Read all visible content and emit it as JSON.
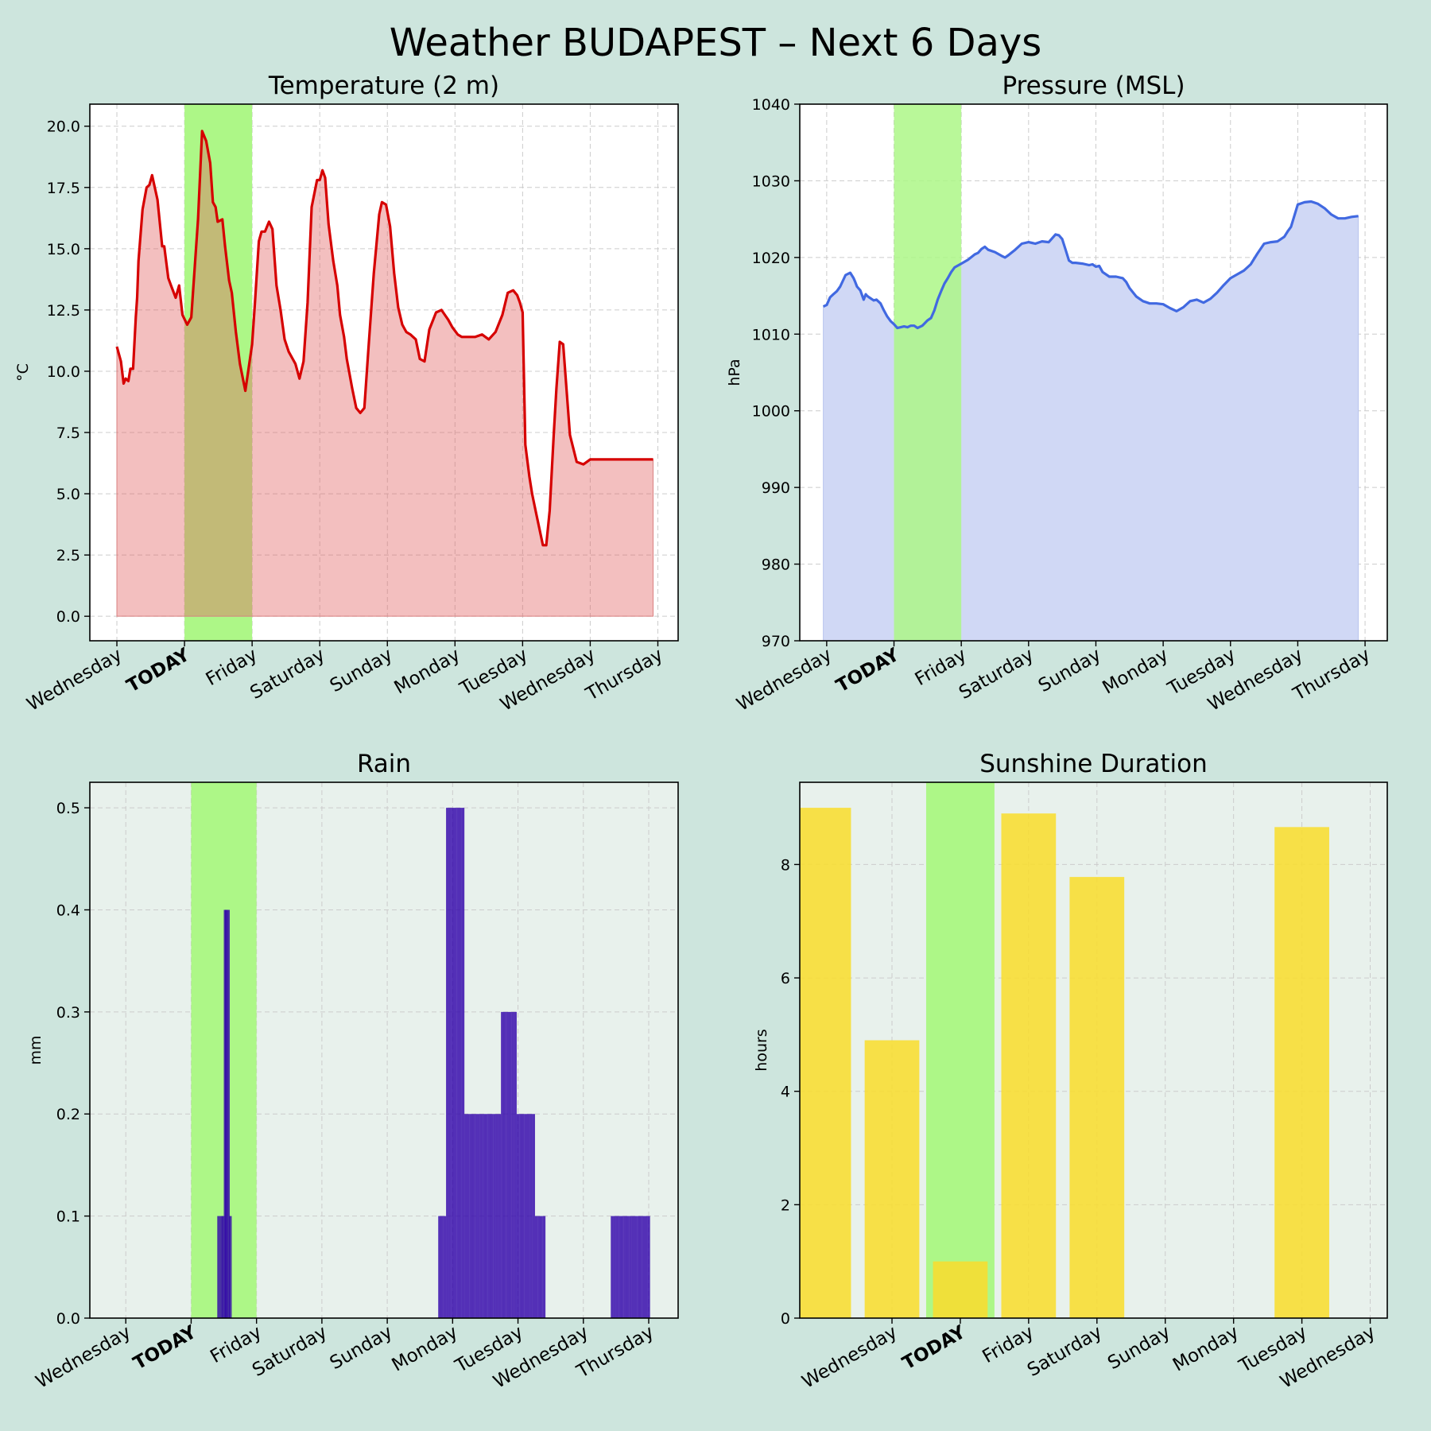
{
  "title": "Weather BUDAPEST – Next 6 Days",
  "colors": {
    "figure_bg": "#cde5dd",
    "today_band": "#adf787",
    "today_label": "#4fc01c",
    "temperature_line": "#d60000",
    "temperature_fill": "#f2bdbd",
    "pressure_line": "#4169e1",
    "pressure_fill": "#d0d8f5",
    "rain_bar": "#2e00aa",
    "sunshine_bar": "#f8dd30",
    "lower_axes_bg": "#e8f1ec"
  },
  "chart_data": [
    {
      "type": "area",
      "title": "Temperature (2 m)",
      "ylabel": "°C",
      "ylim": [
        -1,
        20.9
      ],
      "xlim": [
        -0.4,
        8.3
      ],
      "yticks": [
        "0.0",
        "2.5",
        "5.0",
        "7.5",
        "10.0",
        "12.5",
        "15.0",
        "17.5",
        "20.0"
      ],
      "xtick_labels": [
        "Wednesday",
        "TODAY",
        "Friday",
        "Saturday",
        "Sunday",
        "Monday",
        "Tuesday",
        "Wednesday",
        "Thursday"
      ],
      "today_index": 1,
      "today_band": [
        1,
        2
      ],
      "grid": true,
      "series": [
        {
          "name": "Temperature",
          "x": [
            0,
            0.06,
            0.1,
            0.13,
            0.17,
            0.2,
            0.24,
            0.28,
            0.3,
            0.32,
            0.38,
            0.44,
            0.48,
            0.52,
            0.6,
            0.67,
            0.7,
            0.76,
            0.8,
            0.87,
            0.92,
            0.97,
            1.04,
            1.1,
            1.16,
            1.2,
            1.26,
            1.32,
            1.38,
            1.42,
            1.46,
            1.49,
            1.56,
            1.6,
            1.66,
            1.7,
            1.76,
            1.82,
            1.9,
            2.0,
            2.04,
            2.1,
            2.14,
            2.19,
            2.25,
            2.3,
            2.36,
            2.42,
            2.48,
            2.54,
            2.6,
            2.64,
            2.7,
            2.76,
            2.82,
            2.88,
            2.96,
            3.0,
            3.04,
            3.08,
            3.13,
            3.2,
            3.26,
            3.3,
            3.36,
            3.4,
            3.44,
            3.48,
            3.54,
            3.6,
            3.66,
            3.72,
            3.8,
            3.88,
            3.92,
            3.98,
            4.04,
            4.1,
            4.16,
            4.22,
            4.28,
            4.34,
            4.42,
            4.48,
            4.55,
            4.62,
            4.72,
            4.8,
            4.85,
            4.9,
            4.96,
            5.04,
            5.1,
            5.16,
            5.22,
            5.3,
            5.4,
            5.5,
            5.6,
            5.7,
            5.78,
            5.86,
            5.92,
            5.96,
            6.0,
            6.04,
            6.1,
            6.14,
            6.2,
            6.3,
            6.35,
            6.4,
            6.46,
            6.5,
            6.55,
            6.6,
            6.7,
            6.8,
            6.9,
            7.0,
            7.1,
            7.2,
            7.26,
            7.3,
            7.36,
            7.4,
            7.45,
            7.5,
            7.55,
            7.62,
            7.7,
            7.75,
            7.82,
            7.86,
            7.9,
            7.93
          ],
          "values": [
            11.0,
            10.4,
            9.5,
            9.7,
            9.6,
            10.1,
            10.1,
            12.2,
            13.0,
            14.5,
            16.6,
            17.5,
            17.6,
            18.0,
            17.0,
            15.1,
            15.1,
            13.8,
            13.5,
            13.0,
            13.5,
            12.3,
            11.9,
            12.2,
            14.6,
            16.2,
            19.8,
            19.4,
            18.5,
            16.9,
            16.7,
            16.1,
            16.2,
            15.1,
            13.7,
            13.2,
            11.6,
            10.3,
            9.2,
            11.1,
            12.7,
            15.3,
            15.7,
            15.7,
            16.1,
            15.8,
            13.5,
            12.5,
            11.3,
            10.8,
            10.5,
            10.3,
            9.7,
            10.4,
            12.8,
            16.7,
            17.8,
            17.8,
            18.2,
            17.9,
            16.0,
            14.5,
            13.5,
            12.3,
            11.4,
            10.5,
            9.9,
            9.3,
            8.5,
            8.3,
            8.5,
            10.9,
            14.0,
            16.4,
            16.9,
            16.8,
            15.9,
            14.0,
            12.6,
            11.9,
            11.6,
            11.5,
            11.3,
            10.5,
            10.4,
            11.7,
            12.4,
            12.5,
            12.3,
            12.1,
            11.8,
            11.5,
            11.4,
            11.4,
            11.4,
            11.4,
            11.5,
            11.3,
            11.6,
            12.3,
            13.2,
            13.3,
            13.1,
            12.8,
            12.4,
            7.0,
            5.7,
            5.0,
            4.2,
            2.9,
            2.9,
            4.3,
            7.4,
            9.3,
            11.2,
            11.1,
            7.4,
            6.3,
            6.2,
            6.4,
            6.4,
            6.4,
            6.4,
            6.4,
            6.4,
            6.4,
            6.4,
            6.4,
            6.4,
            6.4,
            6.4,
            6.4,
            6.4,
            6.4,
            6.4,
            6.4
          ]
        }
      ]
    },
    {
      "type": "area",
      "title": "Pressure (MSL)",
      "ylabel": "hPa",
      "ylim": [
        970,
        1040
      ],
      "xlim": [
        -0.4,
        8.33
      ],
      "yticks": [
        "970",
        "980",
        "990",
        "1000",
        "1010",
        "1020",
        "1030",
        "1040"
      ],
      "xtick_labels": [
        "Wednesday",
        "TODAY",
        "Friday",
        "Saturday",
        "Sunday",
        "Monday",
        "Tuesday",
        "Wednesday",
        "Thursday"
      ],
      "today_index": 1,
      "today_band": [
        1,
        2
      ],
      "grid": true,
      "series": [
        {
          "name": "Pressure",
          "x": [
            -0.05,
            0.0,
            0.05,
            0.1,
            0.15,
            0.2,
            0.28,
            0.35,
            0.4,
            0.42,
            0.45,
            0.5,
            0.55,
            0.58,
            0.6,
            0.63,
            0.7,
            0.74,
            0.8,
            0.85,
            0.9,
            0.95,
            1.0,
            1.05,
            1.1,
            1.15,
            1.2,
            1.25,
            1.3,
            1.35,
            1.42,
            1.5,
            1.55,
            1.6,
            1.65,
            1.7,
            1.75,
            1.8,
            1.85,
            1.9,
            2.0,
            2.1,
            2.2,
            2.25,
            2.3,
            2.35,
            2.4,
            2.5,
            2.6,
            2.65,
            2.7,
            2.8,
            2.9,
            3.0,
            3.05,
            3.1,
            3.2,
            3.3,
            3.35,
            3.4,
            3.45,
            3.5,
            3.55,
            3.6,
            3.65,
            3.7,
            3.8,
            3.9,
            3.95,
            4.0,
            4.05,
            4.1,
            4.2,
            4.3,
            4.4,
            4.45,
            4.5,
            4.6,
            4.7,
            4.8,
            4.9,
            5.0,
            5.1,
            5.2,
            5.3,
            5.4,
            5.5,
            5.6,
            5.7,
            5.8,
            5.9,
            6.0,
            6.1,
            6.2,
            6.3,
            6.4,
            6.5,
            6.6,
            6.7,
            6.8,
            6.85,
            6.9,
            7.0,
            7.1,
            7.2,
            7.3,
            7.4,
            7.5,
            7.6,
            7.7,
            7.8,
            7.9
          ],
          "values": [
            1013.6,
            1013.8,
            1014.8,
            1015.2,
            1015.6,
            1016.2,
            1017.7,
            1018.0,
            1017.3,
            1016.9,
            1016.2,
            1015.7,
            1014.5,
            1015.2,
            1015.0,
            1014.8,
            1014.4,
            1014.5,
            1014.0,
            1013.1,
            1012.3,
            1011.7,
            1011.3,
            1010.8,
            1010.9,
            1011.0,
            1010.9,
            1011.1,
            1011.1,
            1010.8,
            1011.1,
            1011.8,
            1012.1,
            1013.1,
            1014.5,
            1015.6,
            1016.6,
            1017.3,
            1018.1,
            1018.7,
            1019.2,
            1019.7,
            1020.4,
            1020.6,
            1021.1,
            1021.4,
            1021.0,
            1020.7,
            1020.2,
            1020.0,
            1020.3,
            1021.0,
            1021.8,
            1022.0,
            1021.9,
            1021.8,
            1022.1,
            1022.0,
            1022.5,
            1023.0,
            1022.9,
            1022.4,
            1021.0,
            1019.6,
            1019.3,
            1019.3,
            1019.2,
            1019.0,
            1019.1,
            1018.8,
            1018.9,
            1018.1,
            1017.5,
            1017.5,
            1017.3,
            1016.8,
            1016.0,
            1014.9,
            1014.3,
            1014.0,
            1014.0,
            1013.9,
            1013.4,
            1013.0,
            1013.5,
            1014.3,
            1014.5,
            1014.1,
            1014.6,
            1015.4,
            1016.4,
            1017.3,
            1017.8,
            1018.3,
            1019.1,
            1020.5,
            1021.8,
            1022.0,
            1022.1,
            1022.7,
            1023.4,
            1024.0,
            1026.9,
            1027.2,
            1027.3,
            1027.0,
            1026.4,
            1025.6,
            1025.1,
            1025.1,
            1025.3,
            1025.4
          ]
        }
      ]
    },
    {
      "type": "bar",
      "title": "Rain",
      "ylabel": "mm",
      "ylim": [
        0,
        0.525
      ],
      "xlim": [
        -0.55,
        8.45
      ],
      "yticks": [
        "0.0",
        "0.1",
        "0.2",
        "0.3",
        "0.4",
        "0.5"
      ],
      "xtick_labels": [
        "Wednesday",
        "TODAY",
        "Friday",
        "Saturday",
        "Sunday",
        "Monday",
        "Tuesday",
        "Wednesday",
        "Thursday"
      ],
      "today_index": 1,
      "today_band": [
        1,
        2
      ],
      "grid": true,
      "bar_width": 0.041,
      "x": [
        1.42,
        1.46,
        1.49,
        1.52,
        1.54,
        1.57,
        1.6,
        4.8,
        4.84,
        4.88,
        4.92,
        4.96,
        5.0,
        5.04,
        5.08,
        5.12,
        5.16,
        5.2,
        5.24,
        5.28,
        5.32,
        5.36,
        5.4,
        5.44,
        5.48,
        5.52,
        5.56,
        5.6,
        5.64,
        5.68,
        5.72,
        5.76,
        5.8,
        5.84,
        5.88,
        5.92,
        5.96,
        6.0,
        6.04,
        6.08,
        6.12,
        6.16,
        6.2,
        6.24,
        6.28,
        6.32,
        6.36,
        6.4,
        7.44,
        7.48,
        7.52,
        7.56,
        7.6,
        7.64,
        7.68,
        7.72,
        7.76,
        7.8,
        7.84,
        7.88,
        7.92,
        7.96,
        8.0
      ],
      "values": [
        0.1,
        0.1,
        0.1,
        0.4,
        0.4,
        0.4,
        0.1,
        0.1,
        0.1,
        0.1,
        0.5,
        0.5,
        0.5,
        0.5,
        0.5,
        0.5,
        0.5,
        0.2,
        0.2,
        0.2,
        0.2,
        0.2,
        0.2,
        0.2,
        0.2,
        0.2,
        0.2,
        0.2,
        0.2,
        0.2,
        0.2,
        0.3,
        0.3,
        0.3,
        0.3,
        0.3,
        0.3,
        0.2,
        0.2,
        0.2,
        0.2,
        0.2,
        0.2,
        0.2,
        0.1,
        0.1,
        0.1,
        0.1,
        0.1,
        0.1,
        0.1,
        0.1,
        0.1,
        0.1,
        0.1,
        0.1,
        0.1,
        0.1,
        0.1,
        0.1,
        0.1,
        0.1,
        0.1
      ]
    },
    {
      "type": "bar",
      "title": "Sunshine Duration",
      "ylabel": "hours",
      "ylim": [
        0,
        9.45
      ],
      "xlim": [
        -0.85,
        7.75
      ],
      "yticks": [
        "0",
        "2",
        "4",
        "6",
        "8"
      ],
      "xtick_labels": [
        "Wednesday",
        "TODAY",
        "Friday",
        "Saturday",
        "Sunday",
        "Monday",
        "Tuesday",
        "Wednesday"
      ],
      "today_index": 1,
      "today_band": [
        1,
        2
      ],
      "grid": true,
      "bar_width": 0.8,
      "x": [
        -0.5,
        0.5,
        1.5,
        2.5,
        3.5,
        4.5,
        5.5,
        6.5
      ],
      "values": [
        9.0,
        4.9,
        1.0,
        8.9,
        7.78,
        0,
        0,
        8.66
      ]
    }
  ]
}
